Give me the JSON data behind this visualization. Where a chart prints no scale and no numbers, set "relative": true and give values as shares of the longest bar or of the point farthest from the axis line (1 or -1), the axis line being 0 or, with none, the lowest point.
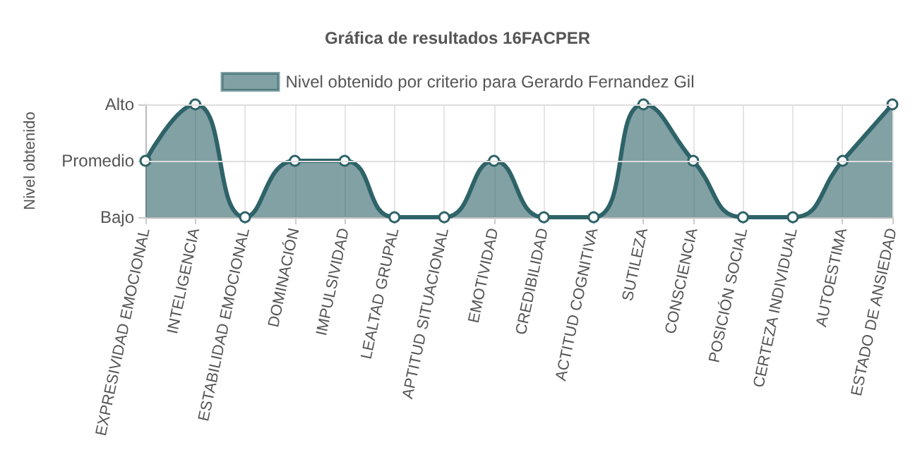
{
  "chart_data": {
    "type": "area",
    "title": "Gráfica de resultados 16FACPER",
    "ylabel": "Nivel obtenido",
    "categories": [
      "EXPRESIVIDAD EMOCIONAL",
      "INTELIGENCIA",
      "ESTABILIDAD EMOCIONAL",
      "DOMINACIÓN",
      "IMPULSIVIDAD",
      "LEALTAD GRUPAL",
      "APTITUD SITUACIONAL",
      "EMOTIVIDAD",
      "CREDIBILIDAD",
      "ACTITUD COGNITIVA",
      "SUTILEZA",
      "CONSCIENCIA",
      "POSICIÓN SOCIAL",
      "CERTEZA INDIVIDUAL",
      "AUTOESTIMA",
      "ESTADO DE ANSIEDAD"
    ],
    "y_categories": [
      "Alto",
      "Promedio",
      "Bajo"
    ],
    "series": [
      {
        "name": "Nivel obtenido por criterio para Gerardo Fernandez Gil",
        "color": "#2e6368",
        "values": [
          0.5,
          1,
          0,
          0.5,
          0.5,
          0,
          0,
          0.5,
          0,
          0,
          1,
          0.5,
          0,
          0,
          0.5,
          1
        ]
      }
    ],
    "relative": true,
    "grid": "x",
    "ref_lines": [
      {
        "axis": "y",
        "value": 0.5,
        "color": "#dddddd"
      },
      {
        "axis": "y",
        "value": 1,
        "color": "#dddddd"
      }
    ],
    "legend": "top",
    "marker": "circle",
    "line_style": "solid"
  }
}
